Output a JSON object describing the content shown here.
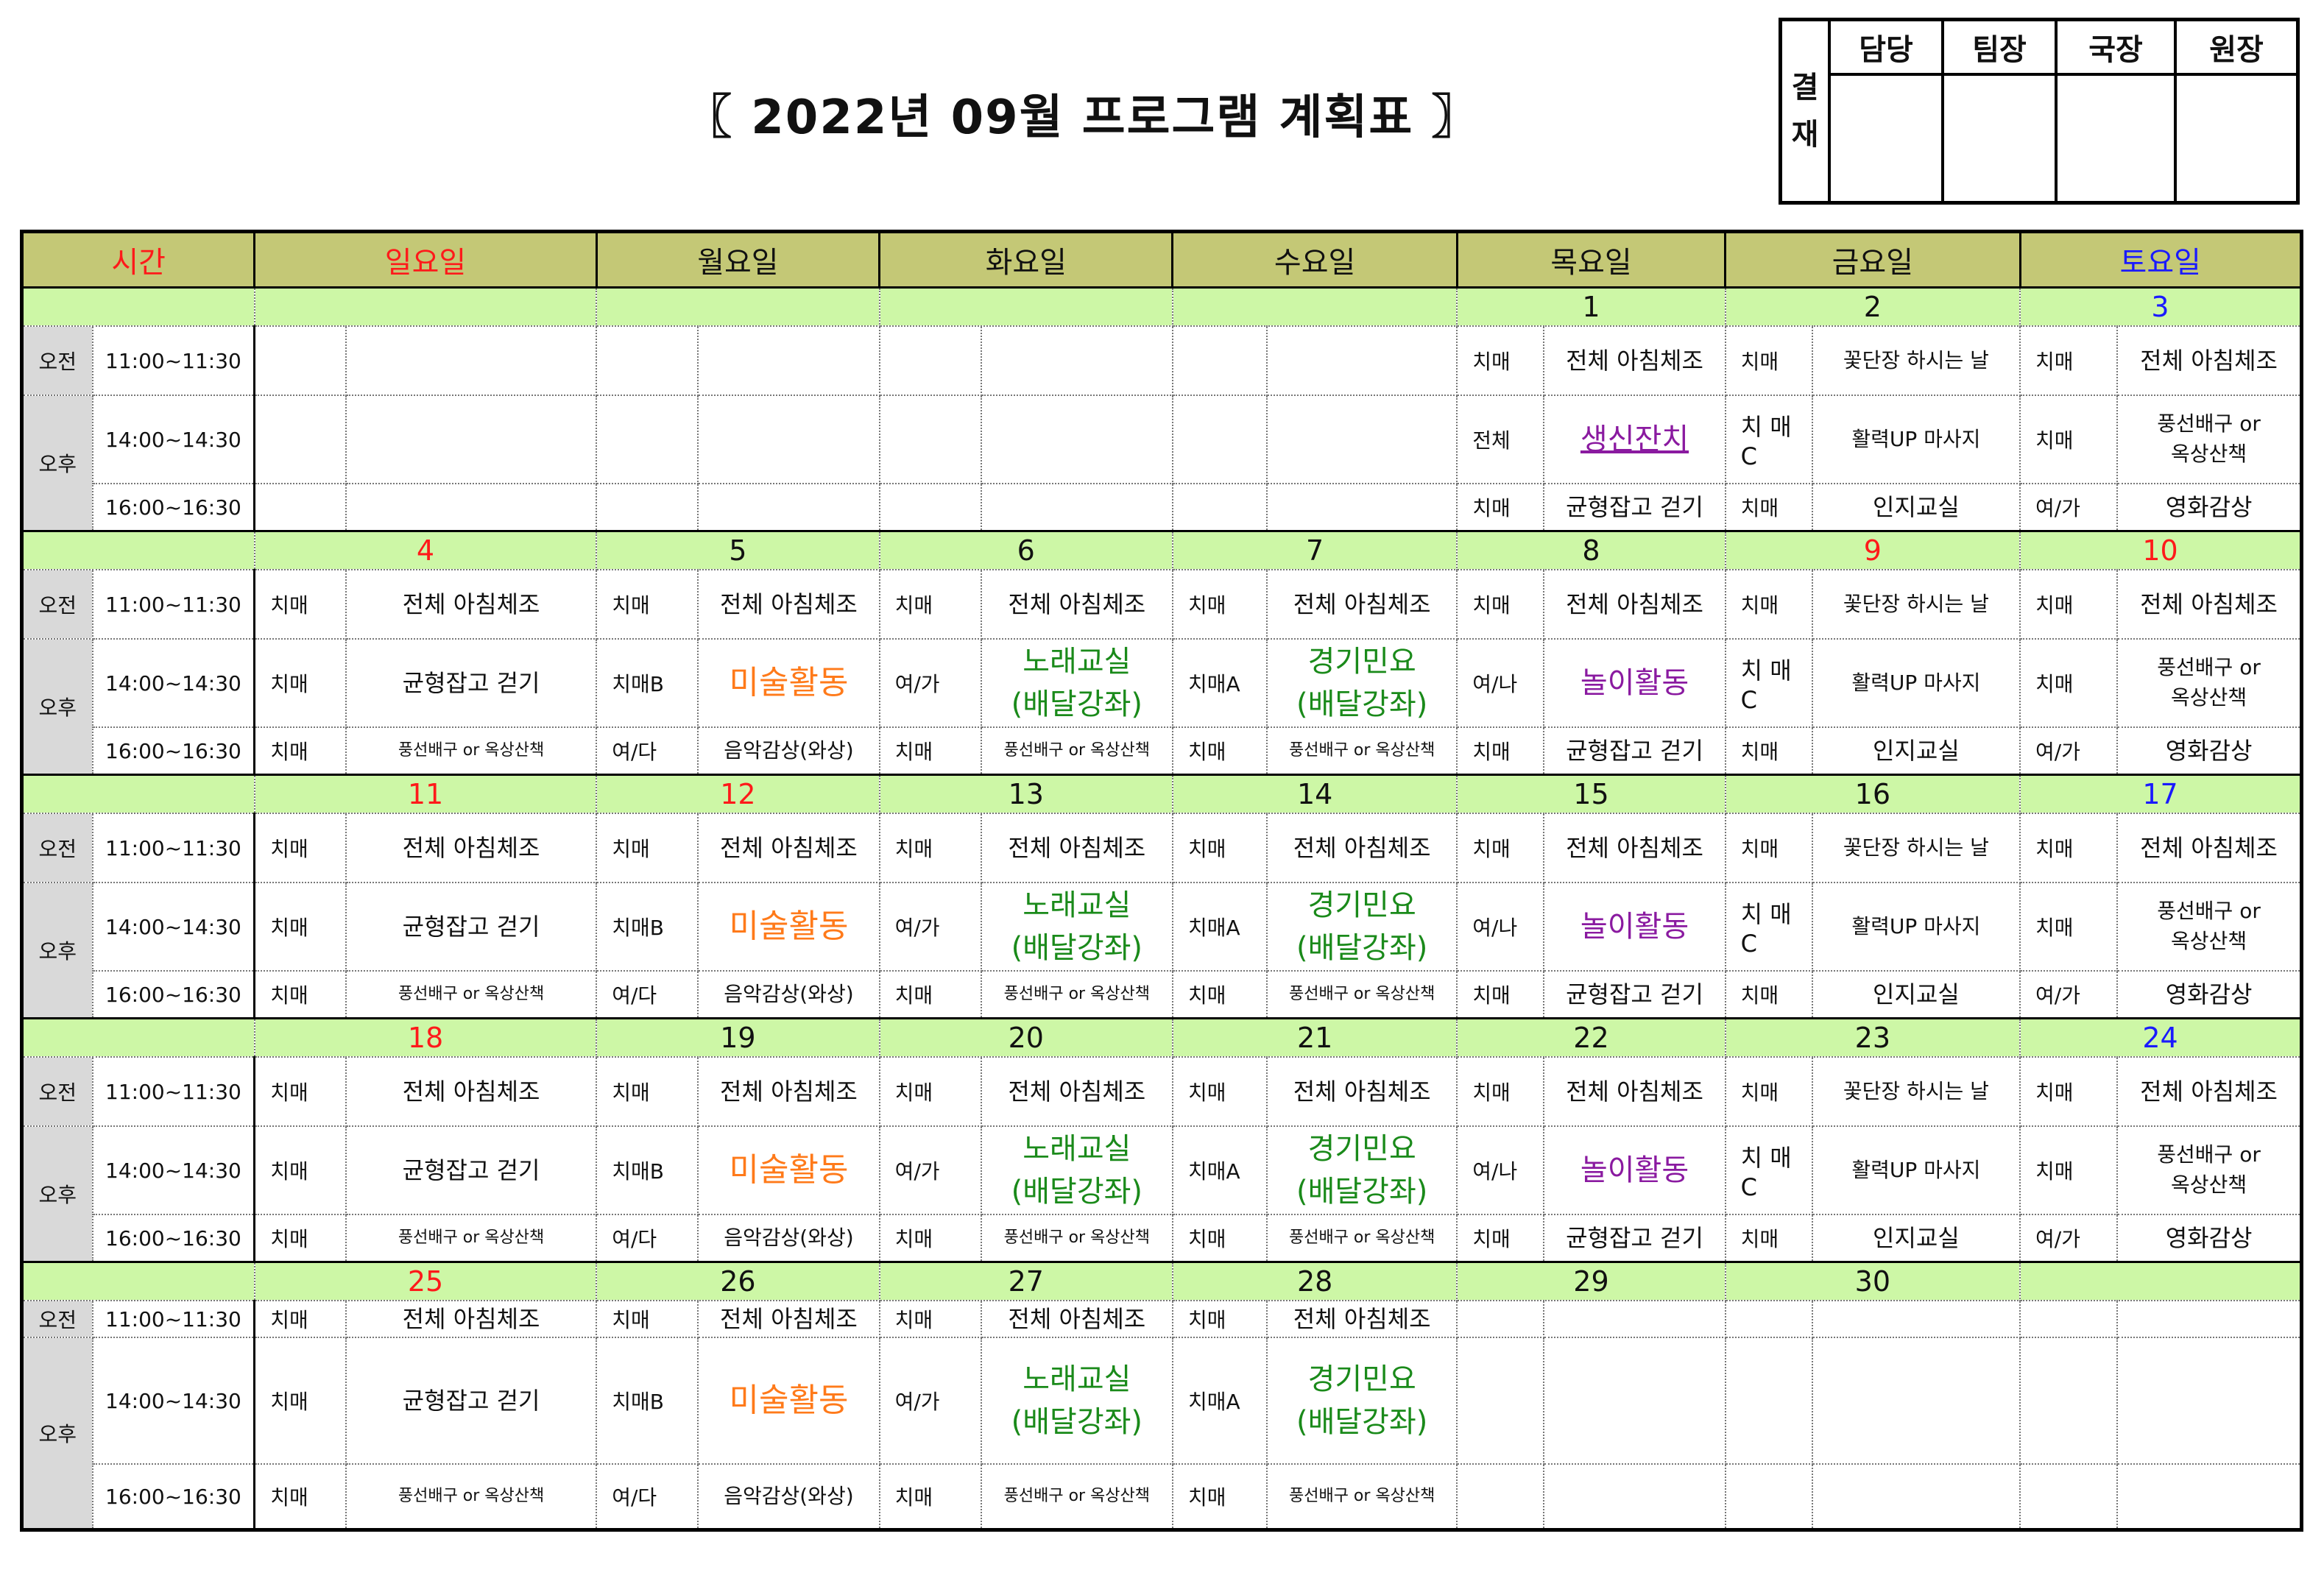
{
  "title": "〖 2022년 09월 프로그램 계획표 〗",
  "approval": {
    "side_label": "결\n재",
    "roles": [
      "담당",
      "팀장",
      "국장",
      "원장"
    ]
  },
  "header": {
    "time": "시간",
    "days": [
      "일요일",
      "월요일",
      "화요일",
      "수요일",
      "목요일",
      "금요일",
      "토요일"
    ]
  },
  "periods": {
    "am": "오전",
    "pm": "오후"
  },
  "times": {
    "t1": "11:00~11:30",
    "t2": "14:00~14:30",
    "t3": "16:00~16:30"
  },
  "weeks": [
    {
      "dates": [
        "",
        "",
        "",
        "",
        "1",
        "2",
        "3"
      ],
      "am": [
        [
          "",
          ""
        ],
        [
          "",
          ""
        ],
        [
          "",
          ""
        ],
        [
          "",
          ""
        ],
        [
          "치매",
          "전체 아침체조"
        ],
        [
          "치매",
          "꽃단장 하시는 날"
        ],
        [
          "치매",
          "전체 아침체조"
        ]
      ],
      "pm1": [
        [
          "",
          ""
        ],
        [
          "",
          ""
        ],
        [
          "",
          ""
        ],
        [
          "",
          ""
        ],
        [
          "전체",
          "생신잔치"
        ],
        [
          "치 매\nC",
          "활력UP 마사지"
        ],
        [
          "치매",
          "풍선배구 or\n옥상산책"
        ]
      ],
      "pm2": [
        [
          "",
          ""
        ],
        [
          "",
          ""
        ],
        [
          "",
          ""
        ],
        [
          "",
          ""
        ],
        [
          "치매",
          "균형잡고 걷기"
        ],
        [
          "치매",
          "인지교실"
        ],
        [
          "여/가",
          "영화감상"
        ]
      ]
    },
    {
      "dates": [
        "4",
        "5",
        "6",
        "7",
        "8",
        "9",
        "10"
      ],
      "am": [
        [
          "치매",
          "전체 아침체조"
        ],
        [
          "치매",
          "전체 아침체조"
        ],
        [
          "치매",
          "전체 아침체조"
        ],
        [
          "치매",
          "전체 아침체조"
        ],
        [
          "치매",
          "전체 아침체조"
        ],
        [
          "치매",
          "꽃단장 하시는 날"
        ],
        [
          "치매",
          "전체 아침체조"
        ]
      ],
      "pm1": [
        [
          "치매",
          "균형잡고 걷기"
        ],
        [
          "치매B",
          "미술활동"
        ],
        [
          "여/가",
          "노래교실\n(배달강좌)"
        ],
        [
          "치매A",
          "경기민요\n(배달강좌)"
        ],
        [
          "여/나",
          "놀이활동"
        ],
        [
          "치 매\nC",
          "활력UP 마사지"
        ],
        [
          "치매",
          "풍선배구 or\n옥상산책"
        ]
      ],
      "pm2": [
        [
          "치매",
          "풍선배구 or 옥상산책"
        ],
        [
          "여/다",
          "음악감상(와상)"
        ],
        [
          "치매",
          "풍선배구 or 옥상산책"
        ],
        [
          "치매",
          "풍선배구 or 옥상산책"
        ],
        [
          "치매",
          "균형잡고 걷기"
        ],
        [
          "치매",
          "인지교실"
        ],
        [
          "여/가",
          "영화감상"
        ]
      ]
    },
    {
      "dates": [
        "11",
        "12",
        "13",
        "14",
        "15",
        "16",
        "17"
      ],
      "am": [
        [
          "치매",
          "전체 아침체조"
        ],
        [
          "치매",
          "전체 아침체조"
        ],
        [
          "치매",
          "전체 아침체조"
        ],
        [
          "치매",
          "전체 아침체조"
        ],
        [
          "치매",
          "전체 아침체조"
        ],
        [
          "치매",
          "꽃단장 하시는 날"
        ],
        [
          "치매",
          "전체 아침체조"
        ]
      ],
      "pm1": [
        [
          "치매",
          "균형잡고 걷기"
        ],
        [
          "치매B",
          "미술활동"
        ],
        [
          "여/가",
          "노래교실\n(배달강좌)"
        ],
        [
          "치매A",
          "경기민요\n(배달강좌)"
        ],
        [
          "여/나",
          "놀이활동"
        ],
        [
          "치 매\nC",
          "활력UP 마사지"
        ],
        [
          "치매",
          "풍선배구 or\n옥상산책"
        ]
      ],
      "pm2": [
        [
          "치매",
          "풍선배구 or 옥상산책"
        ],
        [
          "여/다",
          "음악감상(와상)"
        ],
        [
          "치매",
          "풍선배구 or 옥상산책"
        ],
        [
          "치매",
          "풍선배구 or 옥상산책"
        ],
        [
          "치매",
          "균형잡고 걷기"
        ],
        [
          "치매",
          "인지교실"
        ],
        [
          "여/가",
          "영화감상"
        ]
      ]
    },
    {
      "dates": [
        "18",
        "19",
        "20",
        "21",
        "22",
        "23",
        "24"
      ],
      "am": [
        [
          "치매",
          "전체 아침체조"
        ],
        [
          "치매",
          "전체 아침체조"
        ],
        [
          "치매",
          "전체 아침체조"
        ],
        [
          "치매",
          "전체 아침체조"
        ],
        [
          "치매",
          "전체 아침체조"
        ],
        [
          "치매",
          "꽃단장 하시는 날"
        ],
        [
          "치매",
          "전체 아침체조"
        ]
      ],
      "pm1": [
        [
          "치매",
          "균형잡고 걷기"
        ],
        [
          "치매B",
          "미술활동"
        ],
        [
          "여/가",
          "노래교실\n(배달강좌)"
        ],
        [
          "치매A",
          "경기민요\n(배달강좌)"
        ],
        [
          "여/나",
          "놀이활동"
        ],
        [
          "치 매\nC",
          "활력UP 마사지"
        ],
        [
          "치매",
          "풍선배구 or\n옥상산책"
        ]
      ],
      "pm2": [
        [
          "치매",
          "풍선배구 or 옥상산책"
        ],
        [
          "여/다",
          "음악감상(와상)"
        ],
        [
          "치매",
          "풍선배구 or 옥상산책"
        ],
        [
          "치매",
          "풍선배구 or 옥상산책"
        ],
        [
          "치매",
          "균형잡고 걷기"
        ],
        [
          "치매",
          "인지교실"
        ],
        [
          "여/가",
          "영화감상"
        ]
      ]
    },
    {
      "dates": [
        "25",
        "26",
        "27",
        "28",
        "29",
        "30",
        ""
      ],
      "am": [
        [
          "치매",
          "전체 아침체조"
        ],
        [
          "치매",
          "전체 아침체조"
        ],
        [
          "치매",
          "전체 아침체조"
        ],
        [
          "치매",
          "전체 아침체조"
        ],
        [
          "",
          ""
        ],
        [
          "",
          ""
        ],
        [
          "",
          ""
        ]
      ],
      "pm1": [
        [
          "치매",
          "균형잡고 걷기"
        ],
        [
          "치매B",
          "미술활동"
        ],
        [
          "여/가",
          "노래교실\n(배달강좌)"
        ],
        [
          "치매A",
          "경기민요\n(배달강좌)"
        ],
        [
          "",
          ""
        ],
        [
          "",
          ""
        ],
        [
          "",
          ""
        ]
      ],
      "pm2": [
        [
          "치매",
          "풍선배구 or 옥상산책"
        ],
        [
          "여/다",
          "음악감상(와상)"
        ],
        [
          "치매",
          "풍선배구 or 옥상산책"
        ],
        [
          "치매",
          "풍선배구 or 옥상산책"
        ],
        [
          "",
          ""
        ],
        [
          "",
          ""
        ],
        [
          "",
          ""
        ]
      ]
    }
  ],
  "colors": {
    "header_bg": "#c4c876",
    "date_row_bg": "#cdf7a6",
    "period_bg": "#d9d9d9",
    "sunday_holiday": "#ff1a1a",
    "saturday": "#1a1aff",
    "song_class": "#1a8a1a",
    "art": "#ff7a1a",
    "play": "#8a1aa0"
  },
  "holiday_dates": [
    "4",
    "9",
    "10",
    "11",
    "12",
    "18",
    "25"
  ],
  "saturday_dates": [
    "3",
    "17",
    "24"
  ]
}
